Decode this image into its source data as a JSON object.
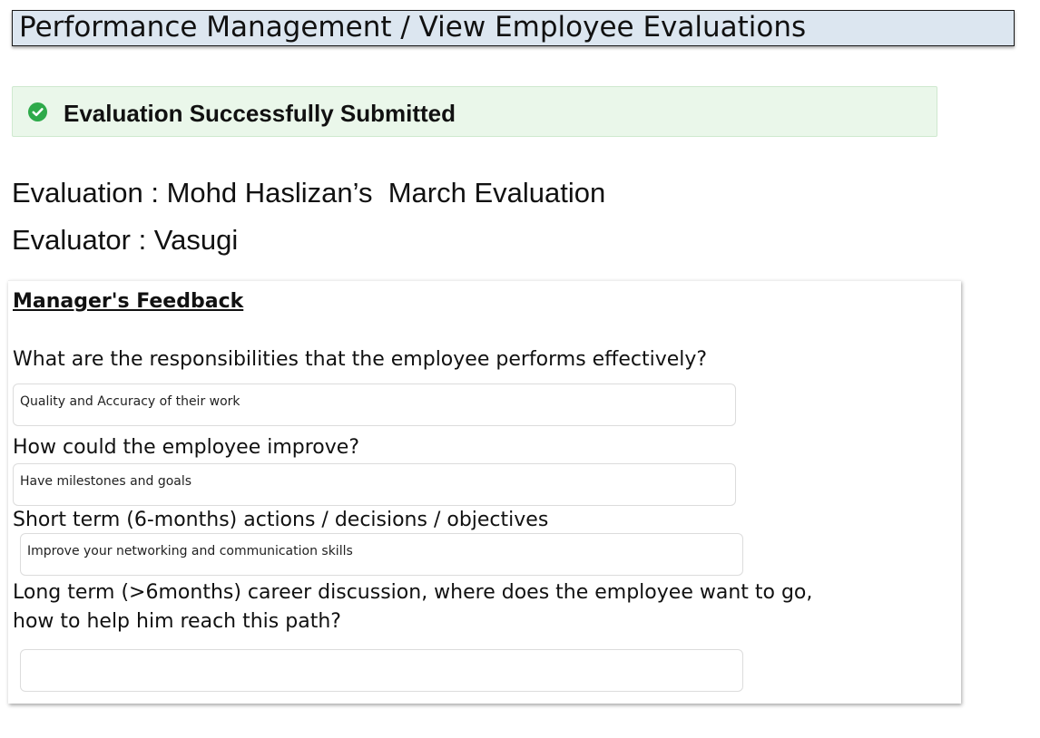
{
  "header": {
    "breadcrumb": "Performance Management / View Employee Evaluations"
  },
  "alert": {
    "icon": "check-circle-icon",
    "color": "#2eaa4a",
    "message": "Evaluation Successfully Submitted"
  },
  "evaluation": {
    "evaluation_line": "Evaluation : Mohd Haslizan’s  March Evaluation",
    "evaluator_line": "Evaluator : Vasugi"
  },
  "feedback": {
    "title": "Manager's Feedback",
    "questions": [
      {
        "question": "What are the responsibilities that the employee performs effectively?",
        "answer": "Quality and Accuracy of their work"
      },
      {
        "question": "How could the employee improve?",
        "answer": "Have milestones and goals"
      },
      {
        "question": "Short term (6-months) actions / decisions / objectives",
        "answer": "Improve your networking and communication skills"
      },
      {
        "question_line1": "Long term (>6months) career discussion, where does the employee want to go,",
        "question_line2": "how to help him reach this path?",
        "answer": ""
      }
    ]
  }
}
